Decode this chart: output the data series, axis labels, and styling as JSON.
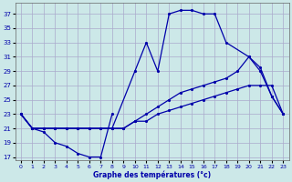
{
  "title": "Graphe des températures (°c)",
  "bg_color": "#cce8e8",
  "grid_color": "#aaaacc",
  "line_color": "#0000aa",
  "xlim": [
    -0.5,
    23.5
  ],
  "ylim": [
    16.5,
    38.5
  ],
  "xticks": [
    0,
    1,
    2,
    3,
    4,
    5,
    6,
    7,
    8,
    9,
    10,
    11,
    12,
    13,
    14,
    15,
    16,
    17,
    18,
    19,
    20,
    21,
    22,
    23
  ],
  "yticks": [
    17,
    19,
    21,
    23,
    25,
    27,
    29,
    31,
    33,
    35,
    37
  ],
  "curve_min_x": [
    0,
    1,
    2,
    3,
    4,
    5,
    6,
    7,
    8
  ],
  "curve_min_y": [
    23,
    21,
    20.5,
    19,
    18.5,
    17.5,
    17,
    17,
    23
  ],
  "curve_low_x": [
    0,
    1,
    2,
    3,
    4,
    5,
    6,
    7,
    8,
    9,
    10,
    11,
    12,
    13,
    14,
    15,
    16,
    17,
    18,
    19,
    20,
    21,
    22,
    23
  ],
  "curve_low_y": [
    23,
    21,
    21,
    21,
    21,
    21,
    21,
    21,
    21,
    21,
    22,
    22,
    23,
    23.5,
    24,
    24.5,
    25,
    25.5,
    26,
    26.5,
    27,
    27,
    27,
    23
  ],
  "curve_mid_x": [
    0,
    1,
    2,
    3,
    4,
    5,
    6,
    7,
    8,
    9,
    10,
    11,
    12,
    13,
    14,
    15,
    16,
    17,
    18,
    19,
    20,
    21,
    22,
    23
  ],
  "curve_mid_y": [
    23,
    21,
    21,
    21,
    21,
    21,
    21,
    21,
    21,
    21,
    22,
    23,
    24,
    25,
    26,
    26.5,
    27,
    27.5,
    28,
    29,
    31,
    29.5,
    25.5,
    23
  ],
  "curve_peak_x": [
    0,
    1,
    2,
    3,
    4,
    5,
    6,
    7,
    8,
    10,
    11,
    12,
    13,
    14,
    15,
    16,
    17,
    18,
    20,
    21,
    22,
    23
  ],
  "curve_peak_y": [
    23,
    21,
    21,
    21,
    21,
    21,
    21,
    21,
    21,
    29,
    33,
    29,
    37,
    37.5,
    37.5,
    37,
    37,
    33,
    31,
    29,
    25.5,
    23
  ]
}
